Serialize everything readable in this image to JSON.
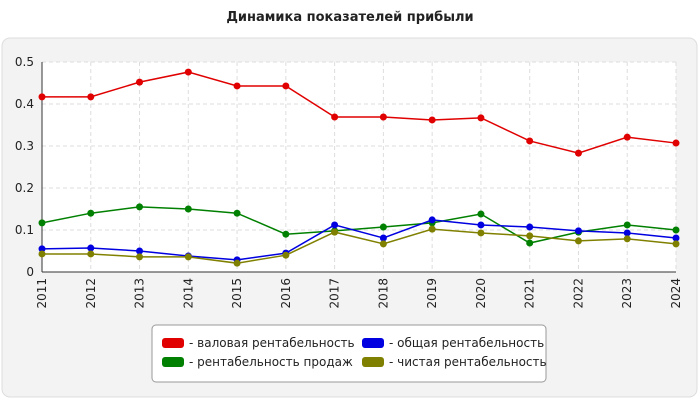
{
  "chart_data": {
    "type": "line",
    "title": "Динамика показателей прибыли",
    "categories": [
      "2011",
      "2012",
      "2013",
      "2014",
      "2015",
      "2016",
      "2017",
      "2018",
      "2019",
      "2020",
      "2021",
      "2022",
      "2023",
      "2024"
    ],
    "series": [
      {
        "name": "- валовая рентабельность",
        "color": "#e00000",
        "values": [
          0.417,
          0.417,
          0.452,
          0.476,
          0.443,
          0.443,
          0.369,
          0.369,
          0.362,
          0.367,
          0.312,
          0.283,
          0.321,
          0.307
        ]
      },
      {
        "name": "- рентабельность продаж",
        "color": "#008000",
        "values": [
          0.117,
          0.14,
          0.155,
          0.15,
          0.14,
          0.09,
          0.098,
          0.107,
          0.117,
          0.138,
          0.069,
          0.095,
          0.112,
          0.1
        ]
      },
      {
        "name": "- общая рентабельность",
        "color": "#0000e0",
        "values": [
          0.055,
          0.057,
          0.05,
          0.038,
          0.029,
          0.045,
          0.112,
          0.081,
          0.124,
          0.112,
          0.107,
          0.098,
          0.093,
          0.081
        ]
      },
      {
        "name": "- чистая рентабельность",
        "color": "#808000",
        "values": [
          0.043,
          0.043,
          0.036,
          0.036,
          0.021,
          0.04,
          0.095,
          0.067,
          0.102,
          0.093,
          0.086,
          0.074,
          0.079,
          0.067
        ]
      }
    ],
    "ylim": [
      0,
      0.5
    ],
    "yticks": [
      0,
      0.1,
      0.2,
      0.3,
      0.4,
      0.5
    ],
    "grid": true
  }
}
